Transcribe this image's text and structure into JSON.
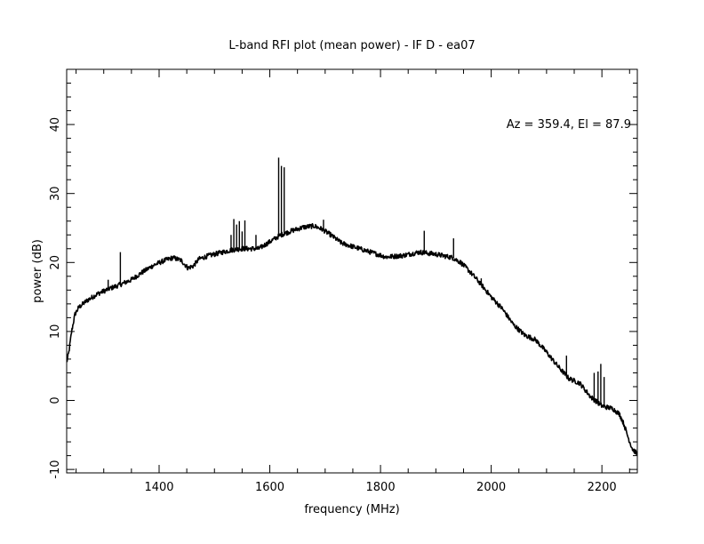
{
  "chart_data": {
    "type": "line",
    "title": "L-band RFI plot (mean power) - IF D - ea07",
    "xlabel": "frequency (MHz)",
    "ylabel": "power (dB)",
    "xlim": [
      1233,
      2264
    ],
    "ylim": [
      -10.5,
      48
    ],
    "xticks": [
      "1400",
      "1600",
      "1800",
      "2000",
      "2200"
    ],
    "yticks": [
      "-10",
      "0",
      "10",
      "20",
      "30",
      "40"
    ],
    "annotation": "Az = 359.4, El = 87.9",
    "grid": false,
    "line_color": "#000000",
    "series": [
      {
        "baseline": [
          [
            1233,
            5.5
          ],
          [
            1237,
            7.0
          ],
          [
            1242,
            10.0
          ],
          [
            1248,
            12.5
          ],
          [
            1255,
            13.5
          ],
          [
            1270,
            14.5
          ],
          [
            1290,
            15.5
          ],
          [
            1310,
            16.2
          ],
          [
            1330,
            16.8
          ],
          [
            1350,
            17.5
          ],
          [
            1370,
            18.6
          ],
          [
            1390,
            19.6
          ],
          [
            1410,
            20.3
          ],
          [
            1425,
            20.7
          ],
          [
            1440,
            20.3
          ],
          [
            1452,
            19.2
          ],
          [
            1462,
            19.5
          ],
          [
            1472,
            20.5
          ],
          [
            1490,
            21.0
          ],
          [
            1510,
            21.4
          ],
          [
            1530,
            21.8
          ],
          [
            1550,
            22.0
          ],
          [
            1570,
            22.0
          ],
          [
            1580,
            22.0
          ],
          [
            1590,
            22.5
          ],
          [
            1600,
            23.0
          ],
          [
            1620,
            24.0
          ],
          [
            1640,
            24.6
          ],
          [
            1660,
            25.1
          ],
          [
            1680,
            25.3
          ],
          [
            1695,
            24.8
          ],
          [
            1710,
            24.0
          ],
          [
            1730,
            22.8
          ],
          [
            1750,
            22.3
          ],
          [
            1770,
            21.8
          ],
          [
            1790,
            21.3
          ],
          [
            1810,
            20.8
          ],
          [
            1840,
            21.0
          ],
          [
            1870,
            21.5
          ],
          [
            1900,
            21.2
          ],
          [
            1930,
            20.7
          ],
          [
            1945,
            20.0
          ],
          [
            1960,
            18.8
          ],
          [
            1980,
            17.0
          ],
          [
            2000,
            15.0
          ],
          [
            2020,
            13.3
          ],
          [
            2040,
            11.0
          ],
          [
            2060,
            9.5
          ],
          [
            2080,
            8.8
          ],
          [
            2100,
            7.0
          ],
          [
            2120,
            5.0
          ],
          [
            2140,
            3.2
          ],
          [
            2160,
            2.5
          ],
          [
            2180,
            0.5
          ],
          [
            2200,
            -0.8
          ],
          [
            2220,
            -1.2
          ],
          [
            2232,
            -2.0
          ],
          [
            2240,
            -3.5
          ],
          [
            2248,
            -5.5
          ],
          [
            2255,
            -7.0
          ],
          [
            2264,
            -7.8
          ]
        ],
        "spikes": [
          [
            1308,
            17.5
          ],
          [
            1330,
            21.5
          ],
          [
            1530,
            24.0
          ],
          [
            1535,
            26.3
          ],
          [
            1540,
            25.5
          ],
          [
            1545,
            26.0
          ],
          [
            1550,
            24.5
          ],
          [
            1555,
            26.1
          ],
          [
            1575,
            24.0
          ],
          [
            1616,
            35.2
          ],
          [
            1621,
            34.0
          ],
          [
            1626,
            33.8
          ],
          [
            1697,
            26.2
          ],
          [
            1879,
            24.6
          ],
          [
            1932,
            23.5
          ],
          [
            1982,
            17.7
          ],
          [
            2136,
            6.5
          ],
          [
            2186,
            4.0
          ],
          [
            2193,
            4.2
          ],
          [
            2198,
            5.3
          ],
          [
            2204,
            3.4
          ]
        ]
      }
    ]
  }
}
